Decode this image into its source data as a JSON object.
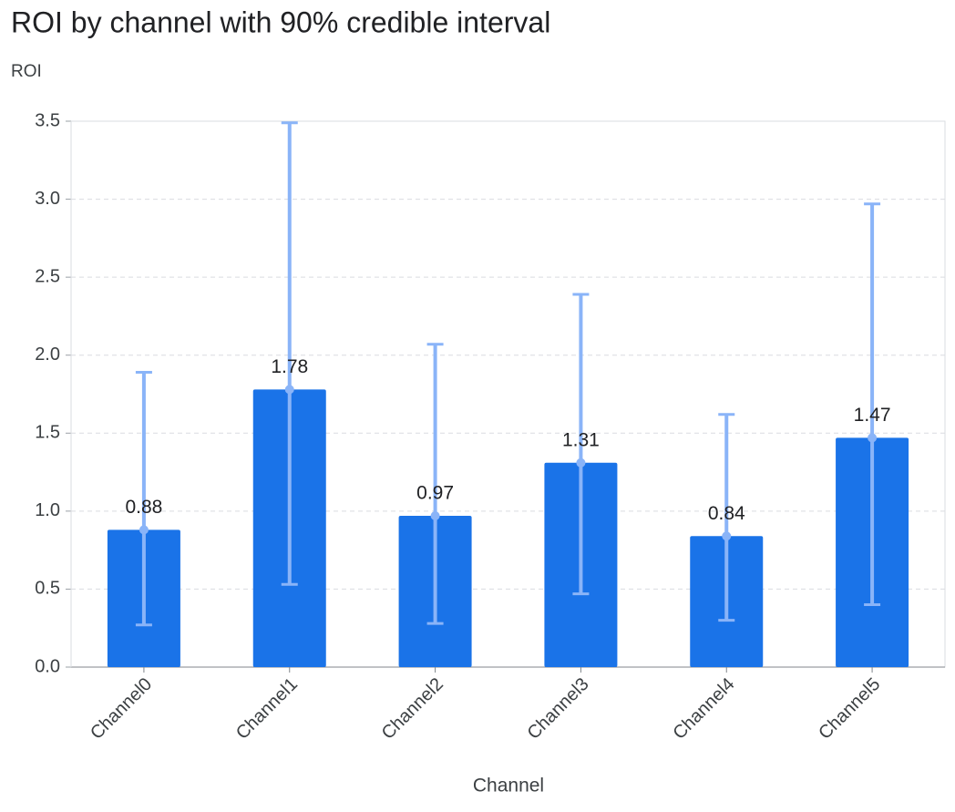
{
  "chart_data": {
    "type": "bar",
    "title": "ROI by channel with 90% credible interval",
    "y_label": "ROI",
    "x_label": "Channel",
    "categories": [
      "Channel0",
      "Channel1",
      "Channel2",
      "Channel3",
      "Channel4",
      "Channel5"
    ],
    "values": [
      0.88,
      1.78,
      0.97,
      1.31,
      0.84,
      1.47
    ],
    "lower": [
      0.27,
      0.53,
      0.28,
      0.47,
      0.3,
      0.4
    ],
    "upper": [
      1.89,
      3.49,
      2.07,
      2.39,
      1.62,
      2.97
    ],
    "color": "#1a73e8",
    "error_color": "#8ab4f8",
    "ylim": [
      0,
      3.5
    ],
    "yticks": [
      {
        "value": 0,
        "label": "0.0"
      },
      0.5,
      {
        "value": 1,
        "label": "1.0"
      },
      1.5,
      {
        "value": 2,
        "label": "2.0"
      },
      2.5,
      {
        "value": 3,
        "label": "3.0"
      },
      3.5
    ],
    "grid": true
  }
}
